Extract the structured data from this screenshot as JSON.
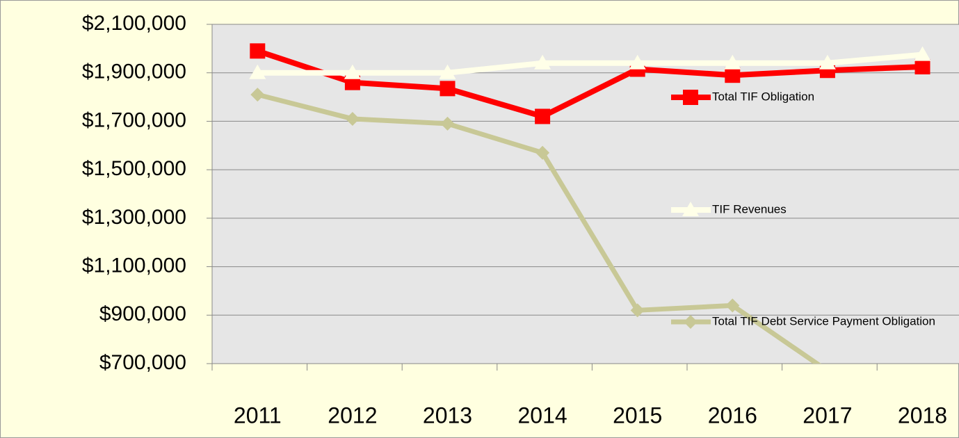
{
  "chart_data": {
    "type": "line",
    "categories": [
      "2011",
      "2012",
      "2013",
      "2014",
      "2015",
      "2016",
      "2017",
      "2018"
    ],
    "series": [
      {
        "name": "Total TIF Obligation",
        "color": "#ff0000",
        "marker": "square",
        "values": [
          1990000,
          1860000,
          1835000,
          1720000,
          1915000,
          1890000,
          1910000,
          1925000
        ]
      },
      {
        "name": "TIF Revenues",
        "color": "#ffffe8",
        "marker": "triangle",
        "values": [
          1900000,
          1900000,
          1900000,
          1940000,
          1940000,
          1940000,
          1940000,
          1975000
        ]
      },
      {
        "name": "Total TIF Debt Service Payment Obligation",
        "color": "#c8c896",
        "marker": "diamond",
        "values": [
          1810000,
          1710000,
          1690000,
          1570000,
          920000,
          940000,
          670000,
          null
        ]
      }
    ],
    "ylim": [
      700000,
      2100000
    ],
    "yticks": [
      {
        "value": 700000,
        "label": "$700,000"
      },
      {
        "value": 900000,
        "label": "$900,000"
      },
      {
        "value": 1100000,
        "label": "$1,100,000"
      },
      {
        "value": 1300000,
        "label": "$1,300,000"
      },
      {
        "value": 1500000,
        "label": "$1,500,000"
      },
      {
        "value": 1700000,
        "label": "$1,700,000"
      },
      {
        "value": 1900000,
        "label": "$1,900,000"
      },
      {
        "value": 2100000,
        "label": "$2,100,000"
      }
    ],
    "grid": true,
    "legend": "right"
  }
}
